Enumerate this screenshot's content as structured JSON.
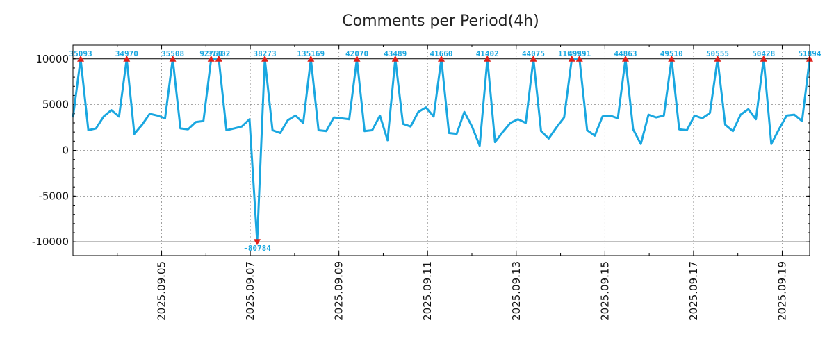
{
  "chart_data": {
    "type": "line",
    "title": "Comments per Period(4h)",
    "xlabel": "",
    "ylabel": "",
    "ylim": [
      -11500,
      11500
    ],
    "y_ticks": [
      10000,
      5000,
      0,
      -5000,
      -10000
    ],
    "y_tick_labels": [
      "10000",
      "5000",
      "0",
      "-5000",
      "-10000"
    ],
    "x_range_days": [
      3.0,
      19.62
    ],
    "x_ticks": [
      5,
      7,
      9,
      11,
      13,
      15,
      17,
      19
    ],
    "x_tick_labels": [
      "2025.09.05",
      "2025.09.07",
      "2025.09.09",
      "2025.09.11",
      "2025.09.13",
      "2025.09.15",
      "2025.09.17",
      "2025.09.19"
    ],
    "clip": [
      -10000,
      10000
    ],
    "grid": true,
    "color": "#1aa7e0",
    "marker_color": "#e0201a",
    "series": [
      {
        "values": [
          3600,
          10000,
          2200,
          2400,
          3700,
          4400,
          3700,
          10000,
          1800,
          2800,
          4000,
          3800,
          3500,
          10000,
          2400,
          2300,
          3100,
          3200,
          10000,
          10000,
          2200,
          2400,
          2600,
          3400,
          -10000,
          10000,
          2200,
          1900,
          3300,
          3800,
          3000,
          10000,
          2200,
          2100,
          3600,
          3500,
          3400,
          10000,
          2100,
          2200,
          3800,
          1100,
          10000,
          2900,
          2600,
          4200,
          4700,
          3700,
          10000,
          1900,
          1800,
          4200,
          2600,
          500,
          10000,
          900,
          2000,
          3000,
          3400,
          3000,
          10000,
          2100,
          1300,
          2500,
          3600,
          10000,
          10000,
          2200,
          1600,
          3700,
          3800,
          3500,
          10000,
          2300,
          700,
          3900,
          3600,
          3800,
          10000,
          2300,
          2200,
          3800,
          3500,
          4100,
          10000,
          2800,
          2100,
          3900,
          4500,
          3400,
          10000,
          700,
          2300,
          3800,
          3900,
          3200,
          10000
        ]
      }
    ],
    "annotations": [
      {
        "idx": 1,
        "text": "35093"
      },
      {
        "idx": 7,
        "text": "34970"
      },
      {
        "idx": 13,
        "text": "35508"
      },
      {
        "idx": 18,
        "text": "92760"
      },
      {
        "idx": 19,
        "text": "37502"
      },
      {
        "idx": 24,
        "text": "-80784"
      },
      {
        "idx": 25,
        "text": "38273"
      },
      {
        "idx": 31,
        "text": "135169"
      },
      {
        "idx": 37,
        "text": "42070"
      },
      {
        "idx": 42,
        "text": "43489"
      },
      {
        "idx": 48,
        "text": "41660"
      },
      {
        "idx": 54,
        "text": "41402"
      },
      {
        "idx": 60,
        "text": "44075"
      },
      {
        "idx": 65,
        "text": "110995"
      },
      {
        "idx": 66,
        "text": "49891"
      },
      {
        "idx": 72,
        "text": "44863"
      },
      {
        "idx": 78,
        "text": "49510"
      },
      {
        "idx": 84,
        "text": "50555"
      },
      {
        "idx": 90,
        "text": "50428"
      },
      {
        "idx": 96,
        "text": "51894"
      }
    ]
  }
}
